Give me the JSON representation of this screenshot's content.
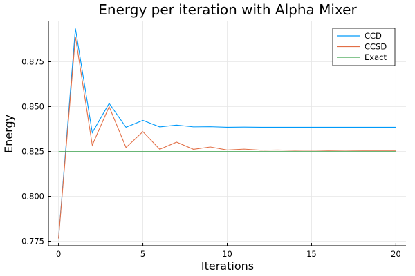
{
  "chart_data": {
    "type": "line",
    "title": "Energy per iteration with Alpha Mixer",
    "xlabel": "Iterations",
    "ylabel": "Energy",
    "xlim": [
      -0.6,
      20.6
    ],
    "ylim": [
      0.7725,
      0.8975
    ],
    "x_ticks": [
      0,
      5,
      10,
      15,
      20
    ],
    "y_ticks": [
      0.775,
      0.8,
      0.825,
      0.85,
      0.875
    ],
    "x_tick_labels": [
      "0",
      "5",
      "10",
      "15",
      "20"
    ],
    "y_tick_labels": [
      "0.775",
      "0.800",
      "0.825",
      "0.850",
      "0.875"
    ],
    "grid": true,
    "legend_position": "top-right",
    "x": [
      0,
      1,
      2,
      3,
      4,
      5,
      6,
      7,
      8,
      9,
      10,
      11,
      12,
      13,
      14,
      15,
      16,
      17,
      18,
      19,
      20
    ],
    "series": [
      {
        "name": "CCD",
        "color": "#009AFA",
        "values": [
          0.7765,
          0.8935,
          0.8355,
          0.8518,
          0.8385,
          0.8423,
          0.8387,
          0.8397,
          0.8387,
          0.8388,
          0.8385,
          0.8386,
          0.8385,
          0.8385,
          0.8385,
          0.8385,
          0.8385,
          0.8385,
          0.8385,
          0.8385,
          0.8385
        ]
      },
      {
        "name": "CCSD",
        "color": "#E26F46",
        "values": [
          0.7765,
          0.889,
          0.8285,
          0.85,
          0.8272,
          0.836,
          0.8262,
          0.8302,
          0.8262,
          0.8275,
          0.8258,
          0.8263,
          0.8257,
          0.8258,
          0.8256,
          0.8257,
          0.8255,
          0.8256,
          0.8255,
          0.8255,
          0.8255
        ]
      },
      {
        "name": "Exact",
        "color": "#3DA44E",
        "values": [
          0.8249,
          0.8249,
          0.8249,
          0.8249,
          0.8249,
          0.8249,
          0.8249,
          0.8249,
          0.8249,
          0.8249,
          0.8249,
          0.8249,
          0.8249,
          0.8249,
          0.8249,
          0.8249,
          0.8249,
          0.8249,
          0.8249,
          0.8249,
          0.8249
        ]
      }
    ]
  }
}
